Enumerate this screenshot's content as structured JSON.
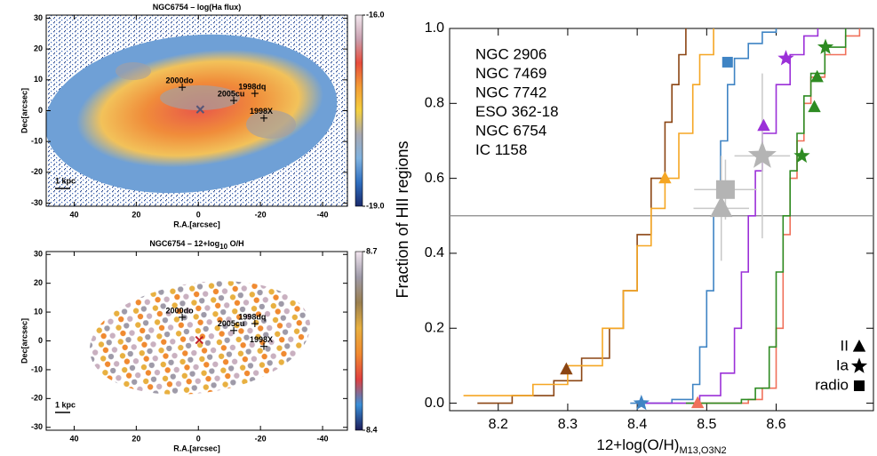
{
  "chart_data": [
    {
      "type": "map",
      "title": "NGC6754 – log(Ha flux)",
      "xlabel": "R.A.[arcsec]",
      "ylabel": "Dec[arcsec]",
      "xlim": [
        49,
        -48
      ],
      "ylim": [
        -31,
        31
      ],
      "xticks": [
        40,
        20,
        0,
        -20,
        -40
      ],
      "yticks": [
        -30,
        -20,
        -10,
        0,
        10,
        20,
        30
      ],
      "colorbar": {
        "clim": [
          -19,
          -16
        ],
        "ticks": [
          {
            "value": -16,
            "label": "-16.0"
          },
          {
            "value": -19,
            "label": "-19.0"
          }
        ],
        "colors": [
          "#1a2a6c",
          "#2f6fc0",
          "#7fb2e0",
          "#a9a9b2",
          "#f4d03f",
          "#f39c35",
          "#e74c3c",
          "#c9a0b0",
          "#f2e8ee"
        ]
      },
      "markers": [
        {
          "label": "2000do",
          "x": 5.2,
          "y": 7.6
        },
        {
          "label": "2005cu",
          "x": -11.4,
          "y": 3.3
        },
        {
          "label": "1998dq",
          "x": -18.2,
          "y": 5.6
        },
        {
          "label": "1998X",
          "x": -21.1,
          "y": -2.4
        }
      ],
      "nucleus": {
        "x": -0.6,
        "y": 0.4,
        "color": "#555577"
      },
      "scale_label": "1 kpc"
    },
    {
      "type": "map",
      "title": "NGC6754 – 12+log",
      "title_sub": "10",
      "title_end": " O/H",
      "xlabel": "R.A.[arcsec]",
      "ylabel": "Dec[arcsec]",
      "xlim": [
        49,
        -48
      ],
      "ylim": [
        -31,
        31
      ],
      "xticks": [
        40,
        20,
        0,
        -20,
        -40
      ],
      "yticks": [
        -30,
        -20,
        -10,
        0,
        10,
        20,
        30
      ],
      "colorbar": {
        "clim": [
          8.4,
          8.7
        ],
        "ticks": [
          {
            "value": 8.7,
            "label": "8.7"
          },
          {
            "value": 8.4,
            "label": "8.4"
          }
        ],
        "colors": [
          "#1c1c5a",
          "#3a8fd8",
          "#e04040",
          "#f08a30",
          "#e8b040",
          "#9a7f50",
          "#9e9aa8",
          "#f3e6f0"
        ]
      },
      "markers": [
        {
          "label": "2000do",
          "x": 5.2,
          "y": 8.2
        },
        {
          "label": "2005cu",
          "x": -11.4,
          "y": 3.6
        },
        {
          "label": "1998dq",
          "x": -18.2,
          "y": 6.0
        },
        {
          "label": "1998X",
          "x": -21.1,
          "y": -1.9
        }
      ],
      "nucleus": {
        "x": -0.3,
        "y": 0.3,
        "color": "#c0202a"
      },
      "scale_label": "1 kpc"
    },
    {
      "type": "cdf",
      "ylabel": "Fraction of HII regions",
      "xlabel": "12+log(O/H)",
      "xlabel_sub": "M13,O3N2",
      "xlim": [
        8.13,
        8.74
      ],
      "ylim": [
        -0.02,
        1.0
      ],
      "xticks": [
        8.2,
        8.3,
        8.4,
        8.5,
        8.6
      ],
      "yticks": [
        {
          "value": 0,
          "label": "0.0"
        },
        {
          "value": 0.2,
          "label": "0.2"
        },
        {
          "value": 0.4,
          "label": "0.4"
        },
        {
          "value": 0.6,
          "label": "0.6"
        },
        {
          "value": 0.8,
          "label": "0.8"
        },
        {
          "value": 1,
          "label": "1.0"
        }
      ],
      "hline": 0.5,
      "series": [
        {
          "name": "NGC 2906",
          "color": "#f0705a",
          "x": [
            8.48,
            8.56,
            8.58,
            8.6,
            8.61,
            8.62,
            8.63,
            8.64,
            8.65,
            8.67,
            8.7,
            8.72
          ],
          "values": [
            0,
            0.01,
            0.04,
            0.2,
            0.45,
            0.6,
            0.7,
            0.8,
            0.87,
            0.93,
            0.98,
            1.0
          ]
        },
        {
          "name": "NGC 7469",
          "color": "#3f84c4",
          "x": [
            8.39,
            8.45,
            8.48,
            8.49,
            8.5,
            8.51,
            8.52,
            8.53,
            8.54,
            8.56,
            8.58,
            8.6
          ],
          "values": [
            0,
            0.01,
            0.05,
            0.15,
            0.3,
            0.5,
            0.7,
            0.85,
            0.92,
            0.96,
            0.99,
            1.0
          ]
        },
        {
          "name": "NGC 7742",
          "color": "#9b30d8",
          "x": [
            8.4,
            8.49,
            8.52,
            8.54,
            8.55,
            8.56,
            8.57,
            8.58,
            8.6,
            8.62,
            8.64,
            8.66
          ],
          "values": [
            0,
            0.02,
            0.08,
            0.2,
            0.35,
            0.5,
            0.62,
            0.72,
            0.85,
            0.93,
            0.98,
            1.0
          ]
        },
        {
          "name": "ESO 362-18",
          "color": "#8b4513",
          "x": [
            8.17,
            8.22,
            8.28,
            8.32,
            8.36,
            8.38,
            8.4,
            8.42,
            8.44,
            8.45,
            8.46,
            8.47
          ],
          "values": [
            0,
            0.02,
            0.06,
            0.12,
            0.2,
            0.3,
            0.45,
            0.6,
            0.75,
            0.85,
            0.93,
            1.0
          ]
        },
        {
          "name": "NGC 6754",
          "color": "#2e8b22",
          "x": [
            8.47,
            8.55,
            8.57,
            8.59,
            8.6,
            8.61,
            8.62,
            8.63,
            8.64,
            8.65,
            8.67,
            8.7
          ],
          "values": [
            0,
            0.01,
            0.04,
            0.15,
            0.35,
            0.5,
            0.62,
            0.72,
            0.82,
            0.88,
            0.95,
            1.0
          ]
        },
        {
          "name": "IC 1158",
          "color": "#f5a623",
          "x": [
            8.15,
            8.25,
            8.3,
            8.35,
            8.38,
            8.4,
            8.42,
            8.44,
            8.46,
            8.48,
            8.49,
            8.51
          ],
          "values": [
            0.02,
            0.05,
            0.1,
            0.2,
            0.3,
            0.42,
            0.52,
            0.6,
            0.72,
            0.85,
            0.93,
            1.0
          ]
        }
      ],
      "markers": [
        {
          "shape": "triangle",
          "color": "#f0705a",
          "x": 8.487,
          "y": 0
        },
        {
          "shape": "star",
          "color": "#3f84c4",
          "x": 8.406,
          "y": 0
        },
        {
          "shape": "square",
          "color": "#3f84c4",
          "x": 8.53,
          "y": 0.91
        },
        {
          "shape": "star",
          "color": "#9b30d8",
          "x": 8.614,
          "y": 0.92
        },
        {
          "shape": "triangle",
          "color": "#9b30d8",
          "x": 8.582,
          "y": 0.74
        },
        {
          "shape": "triangle",
          "color": "#8b4513",
          "x": 8.298,
          "y": 0.09
        },
        {
          "shape": "star",
          "color": "#2e8b22",
          "x": 8.671,
          "y": 0.95
        },
        {
          "shape": "triangle",
          "color": "#2e8b22",
          "x": 8.659,
          "y": 0.87
        },
        {
          "shape": "triangle",
          "color": "#2e8b22",
          "x": 8.655,
          "y": 0.79
        },
        {
          "shape": "star",
          "color": "#2e8b22",
          "x": 8.637,
          "y": 0.66
        },
        {
          "shape": "triangle",
          "color": "#f5a623",
          "x": 8.44,
          "y": 0.6
        },
        {
          "shape": "triangle",
          "color": "#b4b4b4",
          "x": 8.521,
          "y": 0.52,
          "xerr": 0.04,
          "yerr": 0.14
        },
        {
          "shape": "square",
          "color": "#b4b4b4",
          "x": 8.527,
          "y": 0.57,
          "xerr": 0.045,
          "yerr": 0.08
        },
        {
          "shape": "star",
          "color": "#b4b4b4",
          "x": 8.58,
          "y": 0.66,
          "xerr": 0.04,
          "yerr": 0.22
        }
      ],
      "marker_key": [
        {
          "label": "II",
          "shape": "triangle"
        },
        {
          "label": "Ia",
          "shape": "star"
        },
        {
          "label": "radio",
          "shape": "square"
        }
      ]
    }
  ]
}
